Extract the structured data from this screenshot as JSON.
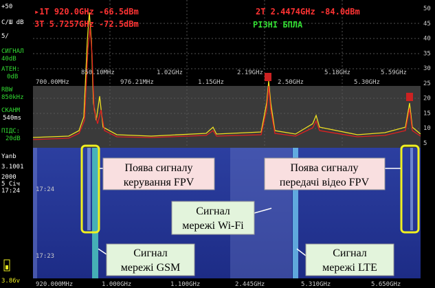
{
  "left_panel": {
    "ref_level": "+50",
    "scale_unit": "С/Ш dB",
    "scale_div": "5/",
    "signal_label": "СИГНАЛ",
    "signal_value": "40dB",
    "atten_label": "АТЕН:",
    "atten_value": "0dB",
    "rbw_label": "RBW",
    "rbw_value": "850kHz",
    "sweep_label": "СКАНМ",
    "sweep_value": "540ms",
    "gain_label": "ПІДС:",
    "gain_value": "20dB",
    "mode": "Yanb",
    "version": "3.1001",
    "year": "2000",
    "date": "5 Січ",
    "time": "17:24",
    "battery": "3.86v"
  },
  "markers": {
    "m1": "▸1T  920.0GHz -66.5dBm",
    "m2": "2T  2.4474GHz -84.0dBm",
    "m3": "3T  5.7257GHz -72.5dBm",
    "preset": "РІЗНІ БПЛА"
  },
  "freq_row1": [
    "850.10MHz",
    "1.02GHz",
    "2.19GHz",
    "2.50GHz",
    "5.18GHz",
    "5.59GHz"
  ],
  "freq_row2": [
    "700.00MHz",
    "976.21MHz",
    "1.15GHz",
    "5.30GHz"
  ],
  "scale": [
    50,
    45,
    40,
    35,
    30,
    25,
    20,
    15,
    10,
    5
  ],
  "waterfall_times": [
    "17:24",
    "17:23"
  ],
  "bottom_axis": [
    "920.000MHz",
    "1.000GHz",
    "1.100GHz",
    "2.445GHz",
    "5.310GHz",
    "5.650GHz"
  ],
  "annotations": {
    "fpv_control": [
      "Поява сигналу",
      "керування FPV"
    ],
    "fpv_video": [
      "Поява сигналу",
      "передачі відео FPV"
    ],
    "wifi": [
      "Сигнал",
      "мережі Wi-Fi"
    ],
    "gsm": [
      "Сигнал",
      "мережі GSM"
    ],
    "lte": [
      "Сигнал",
      "мережі LTE"
    ]
  }
}
